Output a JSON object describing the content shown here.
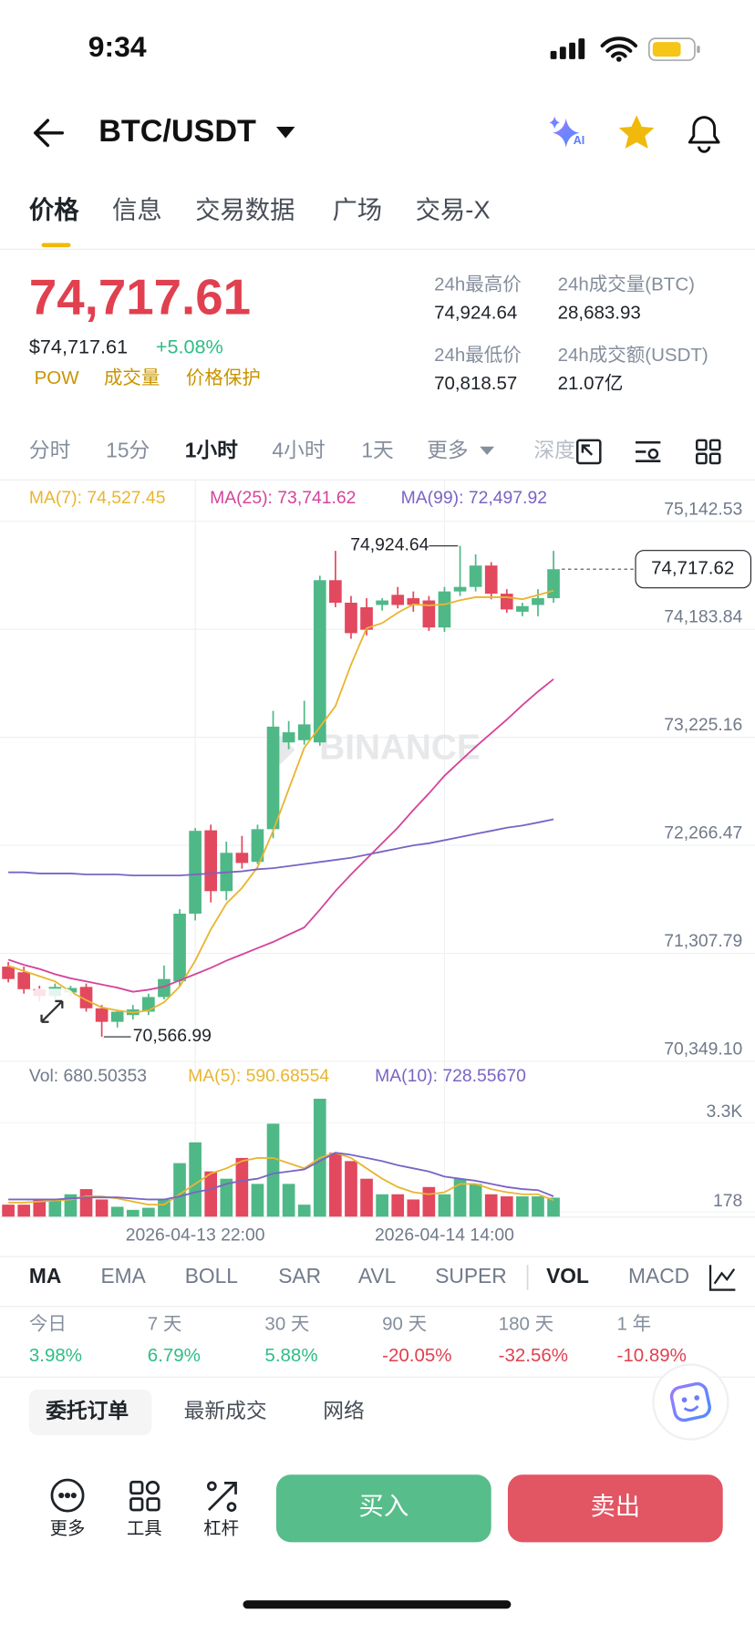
{
  "status_bar": {
    "time": "9:34"
  },
  "header": {
    "pair": "BTC/USDT",
    "ai_badge": "AI"
  },
  "tabs": [
    "价格",
    "信息",
    "交易数据",
    "广场",
    "交易-X"
  ],
  "price": {
    "last": "74,717.61",
    "usd": "$74,717.61",
    "change": "+5.08%",
    "tags": [
      "POW",
      "成交量",
      "价格保护"
    ]
  },
  "stats": [
    {
      "label": "24h最高价",
      "value": "74,924.64"
    },
    {
      "label": "24h成交量(BTC)",
      "value": "28,683.93"
    },
    {
      "label": "24h最低价",
      "value": "70,818.57"
    },
    {
      "label": "24h成交额(USDT)",
      "value": "21.07亿"
    }
  ],
  "intervals": [
    "分时",
    "15分",
    "1小时",
    "4小时",
    "1天",
    "更多",
    "深度"
  ],
  "chart_data": [
    {
      "type": "candlestick",
      "up_color": "#4fb887",
      "down_color": "#e2485e",
      "watermark": "BINANCE",
      "open": [
        71190,
        71140,
        70990,
        70930,
        70960,
        71010,
        70820,
        70700,
        70760,
        70790,
        70920,
        71060,
        71660,
        72400,
        71860,
        72200,
        72120,
        72410,
        73180,
        73200,
        73180,
        74620,
        74420,
        74380,
        74400,
        74490,
        74460,
        74440,
        74200,
        74520,
        74560,
        74750,
        74500,
        74340,
        74400,
        74460
      ],
      "high": [
        71230,
        71190,
        71020,
        71040,
        71020,
        71040,
        70850,
        70800,
        70850,
        70950,
        71200,
        71700,
        72420,
        72450,
        72300,
        72350,
        72450,
        73460,
        73370,
        73550,
        74660,
        74880,
        74480,
        74460,
        74460,
        74560,
        74520,
        74480,
        74560,
        74924.64,
        74850,
        74780,
        74540,
        74420,
        74540,
        74880
      ],
      "low": [
        71050,
        70950,
        70880,
        70900,
        70930,
        70790,
        70566.99,
        70650,
        70720,
        70760,
        70900,
        71020,
        71600,
        71760,
        71780,
        72060,
        72100,
        72330,
        73120,
        73160,
        73150,
        74380,
        74100,
        74130,
        74350,
        74370,
        74340,
        74170,
        74160,
        74480,
        74520,
        74450,
        74330,
        74300,
        74300,
        74420
      ],
      "close": [
        71080,
        70990,
        70930,
        71010,
        71000,
        70820,
        70700,
        70790,
        70810,
        70920,
        71080,
        71660,
        72395,
        71860,
        72200,
        72110,
        72410,
        73320,
        73270,
        73340,
        74620,
        74420,
        74150,
        74180,
        74440,
        74400,
        74400,
        74200,
        74520,
        74560,
        74750,
        74500,
        74360,
        74390,
        74460,
        74717.62
      ],
      "series": [
        {
          "name": "MA(7): 74,527.45",
          "color": "#e9b530",
          "values": [
            71197,
            71151,
            71105,
            71059,
            70967,
            70893,
            70828,
            70801,
            70782,
            70801,
            70874,
            71013,
            71243,
            71520,
            71750,
            71888,
            72073,
            72395,
            72764,
            73133,
            73317,
            73502,
            73870,
            74193,
            74239,
            74331,
            74405,
            74396,
            74405,
            74442,
            74469,
            74469,
            74469,
            74451,
            74488,
            74527.45
          ]
        },
        {
          "name": "MA(25): 73,741.62",
          "color": "#d4449b",
          "values": [
            71252,
            71206,
            71169,
            71123,
            71086,
            71059,
            71031,
            71003,
            70967,
            70985,
            71013,
            71068,
            71123,
            71179,
            71243,
            71298,
            71354,
            71409,
            71474,
            71538,
            71695,
            71861,
            72008,
            72147,
            72285,
            72423,
            72580,
            72727,
            72884,
            73013,
            73142,
            73262,
            73382,
            73511,
            73631,
            73741.62
          ]
        },
        {
          "name": "MA(99): 72,497.92",
          "color": "#7a64c4",
          "values": [
            72027,
            72027,
            72017,
            72017,
            72017,
            72008,
            72008,
            72008,
            71999,
            71999,
            71999,
            71999,
            72008,
            72017,
            72027,
            72036,
            72054,
            72064,
            72082,
            72100,
            72119,
            72137,
            72156,
            72183,
            72211,
            72239,
            72266,
            72285,
            72312,
            72340,
            72368,
            72395,
            72423,
            72442,
            72469,
            72497.92
          ]
        }
      ],
      "ylim": [
        70349.1,
        75511
      ],
      "yticks": [
        {
          "value": 70349.1,
          "label": "70,349.10"
        },
        {
          "value": 71307.79,
          "label": "71,307.79"
        },
        {
          "value": 72266.47,
          "label": "72,266.47"
        },
        {
          "value": 73225.16,
          "label": "73,225.16"
        },
        {
          "value": 74183.84,
          "label": "74,183.84"
        },
        {
          "value": 75142.53,
          "label": "75,142.53"
        }
      ],
      "grid": true,
      "high_label": "74,924.64",
      "low_label": "70,566.99",
      "last_label": "74,717.62"
    },
    {
      "type": "bar",
      "title": "Vol: 680.50353",
      "categories": [
        null,
        null,
        null,
        null,
        null,
        null,
        null,
        null,
        null,
        null,
        null,
        null,
        "2026-04-13 22:00",
        null,
        null,
        null,
        null,
        null,
        null,
        null,
        null,
        null,
        null,
        null,
        null,
        null,
        null,
        null,
        "2026-04-14 14:00",
        null,
        null,
        null,
        null,
        null,
        null,
        null
      ],
      "values": [
        436,
        436,
        617,
        617,
        799,
        980,
        617,
        363,
        254,
        327,
        617,
        1888,
        2614,
        1597,
        1343,
        2069,
        1162,
        3267,
        1162,
        436,
        4138,
        2251,
        1960,
        1343,
        799,
        799,
        617,
        1053,
        799,
        1343,
        1162,
        799,
        726,
        726,
        726,
        680.50353
      ],
      "series": [
        {
          "name": "MA(5): 590.68554",
          "color": "#e9b530",
          "values": [
            508,
            508,
            545,
            581,
            617,
            726,
            726,
            653,
            545,
            436,
            436,
            799,
            1162,
            1525,
            1706,
            1960,
            2069,
            2069,
            1888,
            1706,
            2069,
            2251,
            2069,
            1706,
            1343,
            1053,
            871,
            799,
            871,
            1162,
            1162,
            980,
            871,
            799,
            799,
            590.68554
          ]
        },
        {
          "name": "MA(10): 728.55670",
          "color": "#7a64c4",
          "values": [
            617,
            617,
            617,
            617,
            653,
            690,
            690,
            690,
            653,
            617,
            617,
            726,
            871,
            980,
            1162,
            1271,
            1343,
            1525,
            1597,
            1670,
            1960,
            2251,
            2178,
            2069,
            1960,
            1815,
            1706,
            1597,
            1416,
            1343,
            1271,
            1162,
            1053,
            980,
            944,
            728.5567
          ]
        }
      ],
      "ylim": [
        0,
        4429
      ],
      "yticks": [
        178,
        {
          "value": 3300,
          "label": "3.3K"
        }
      ],
      "grid": true
    }
  ],
  "indicators": [
    "MA",
    "EMA",
    "BOLL",
    "SAR",
    "AVL",
    "SUPER",
    "VOL",
    "MACD"
  ],
  "performance": [
    {
      "period": "今日",
      "change": "3.98%"
    },
    {
      "period": "7 天",
      "change": "6.79%"
    },
    {
      "period": "30 天",
      "change": "5.88%"
    },
    {
      "period": "90 天",
      "change": "-20.05%"
    },
    {
      "period": "180 天",
      "change": "-32.56%"
    },
    {
      "period": "1 年",
      "change": "-10.89%"
    }
  ],
  "order_tabs": [
    "委托订单",
    "最新成交",
    "网络"
  ],
  "bottom_bar": {
    "tools": [
      "更多",
      "工具",
      "杠杆"
    ],
    "buy": "买入",
    "sell": "卖出"
  }
}
